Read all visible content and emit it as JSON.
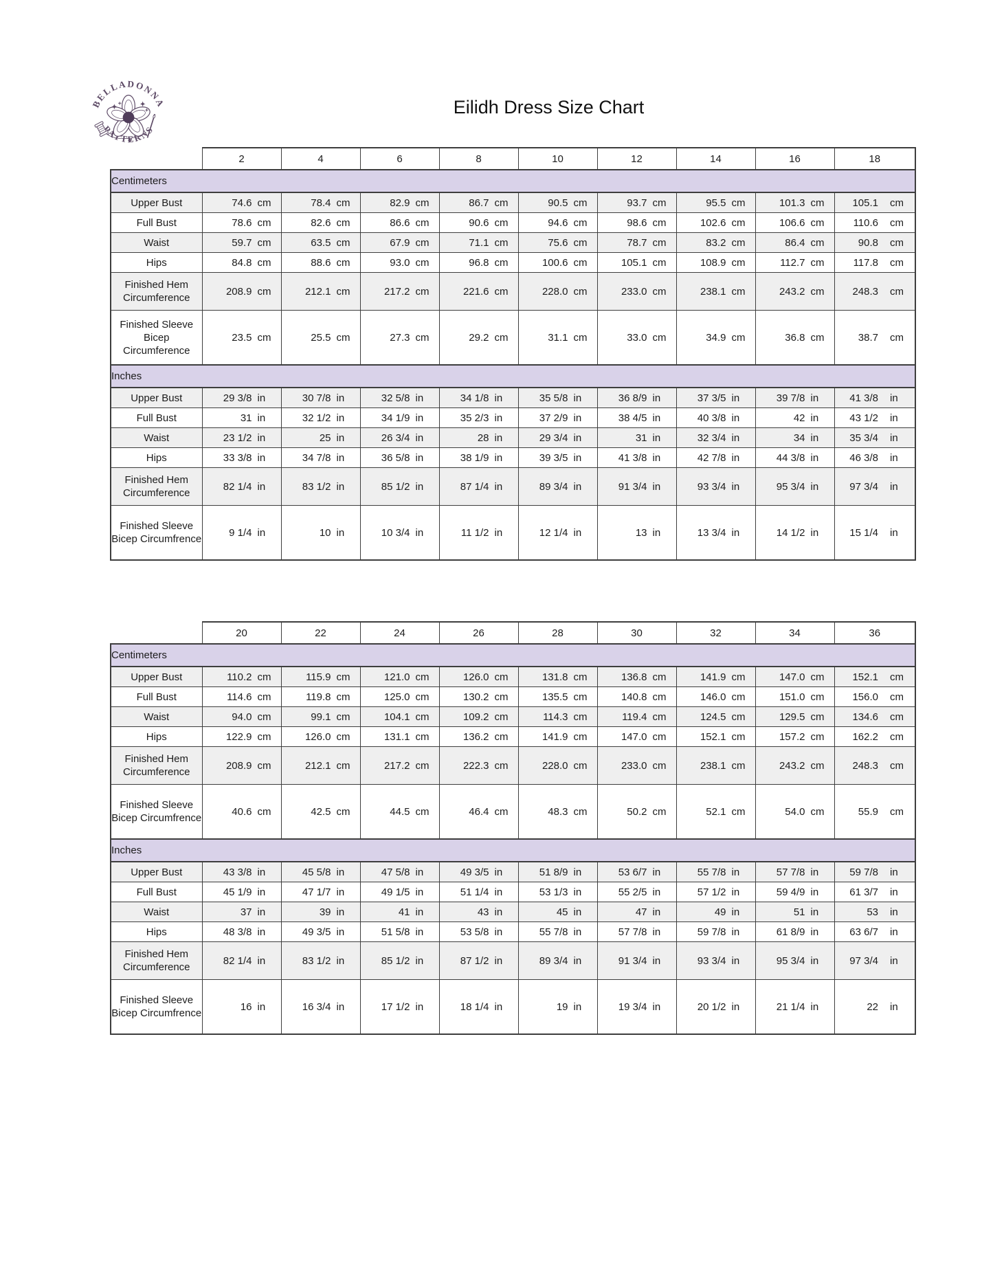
{
  "logo": {
    "arc_top": "BELLADONNA",
    "arc_bottom": "PATTERNS"
  },
  "title": "Eilidh Dress Size Chart",
  "colors": {
    "section_band": "#d9d2e9",
    "shaded_row": "#efefef",
    "border": "#3d3d3d",
    "logo_purple": "#5d4a66"
  },
  "tables": [
    {
      "name": "sizes-2-18",
      "sizes": [
        "2",
        "4",
        "6",
        "8",
        "10",
        "12",
        "14",
        "16",
        "18"
      ],
      "sections": [
        {
          "label": "Centimeters",
          "unit": "cm",
          "rows": [
            {
              "label": "Upper Bust",
              "values": [
                "74.6",
                "78.4",
                "82.9",
                "86.7",
                "90.5",
                "93.7",
                "95.5",
                "101.3",
                "105.1"
              ]
            },
            {
              "label": "Full Bust",
              "values": [
                "78.6",
                "82.6",
                "86.6",
                "90.6",
                "94.6",
                "98.6",
                "102.6",
                "106.6",
                "110.6"
              ]
            },
            {
              "label": "Waist",
              "values": [
                "59.7",
                "63.5",
                "67.9",
                "71.1",
                "75.6",
                "78.7",
                "83.2",
                "86.4",
                "90.8"
              ]
            },
            {
              "label": "Hips",
              "values": [
                "84.8",
                "88.6",
                "93.0",
                "96.8",
                "100.6",
                "105.1",
                "108.9",
                "112.7",
                "117.8"
              ]
            },
            {
              "label": "Finished Hem Circumference",
              "values": [
                "208.9",
                "212.1",
                "217.2",
                "221.6",
                "228.0",
                "233.0",
                "238.1",
                "243.2",
                "248.3"
              ]
            },
            {
              "label": "Finished Sleeve Bicep Circumference",
              "values": [
                "23.5",
                "25.5",
                "27.3",
                "29.2",
                "31.1",
                "33.0",
                "34.9",
                "36.8",
                "38.7"
              ]
            }
          ]
        },
        {
          "label": "Inches",
          "unit": "in",
          "rows": [
            {
              "label": "Upper Bust",
              "values": [
                "29 3/8",
                "30 7/8",
                "32 5/8",
                "34 1/8",
                "35 5/8",
                "36 8/9",
                "37 3/5",
                "39 7/8",
                "41 3/8"
              ]
            },
            {
              "label": "Full Bust",
              "values": [
                "31",
                "32 1/2",
                "34 1/9",
                "35 2/3",
                "37 2/9",
                "38 4/5",
                "40 3/8",
                "42",
                "43 1/2"
              ]
            },
            {
              "label": "Waist",
              "values": [
                "23 1/2",
                "25",
                "26 3/4",
                "28",
                "29 3/4",
                "31",
                "32 3/4",
                "34",
                "35 3/4"
              ]
            },
            {
              "label": "Hips",
              "values": [
                "33 3/8",
                "34 7/8",
                "36 5/8",
                "38 1/9",
                "39 3/5",
                "41 3/8",
                "42 7/8",
                "44 3/8",
                "46 3/8"
              ]
            },
            {
              "label": "Finished Hem Circumference",
              "values": [
                "82 1/4",
                "83 1/2",
                "85 1/2",
                "87 1/4",
                "89 3/4",
                "91 3/4",
                "93 3/4",
                "95 3/4",
                "97 3/4"
              ]
            },
            {
              "label": "Finished Sleeve Bicep Circumfrence",
              "values": [
                "9 1/4",
                "10",
                "10 3/4",
                "11 1/2",
                "12 1/4",
                "13",
                "13 3/4",
                "14 1/2",
                "15 1/4"
              ]
            }
          ]
        }
      ]
    },
    {
      "name": "sizes-20-36",
      "sizes": [
        "20",
        "22",
        "24",
        "26",
        "28",
        "30",
        "32",
        "34",
        "36"
      ],
      "sections": [
        {
          "label": "Centimeters",
          "unit": "cm",
          "rows": [
            {
              "label": "Upper Bust",
              "values": [
                "110.2",
                "115.9",
                "121.0",
                "126.0",
                "131.8",
                "136.8",
                "141.9",
                "147.0",
                "152.1"
              ]
            },
            {
              "label": "Full Bust",
              "values": [
                "114.6",
                "119.8",
                "125.0",
                "130.2",
                "135.5",
                "140.8",
                "146.0",
                "151.0",
                "156.0"
              ]
            },
            {
              "label": "Waist",
              "values": [
                "94.0",
                "99.1",
                "104.1",
                "109.2",
                "114.3",
                "119.4",
                "124.5",
                "129.5",
                "134.6"
              ]
            },
            {
              "label": "Hips",
              "values": [
                "122.9",
                "126.0",
                "131.1",
                "136.2",
                "141.9",
                "147.0",
                "152.1",
                "157.2",
                "162.2"
              ]
            },
            {
              "label": "Finished Hem Circumference",
              "values": [
                "208.9",
                "212.1",
                "217.2",
                "222.3",
                "228.0",
                "233.0",
                "238.1",
                "243.2",
                "248.3"
              ]
            },
            {
              "label": "Finished Sleeve Bicep Circumfrence",
              "values": [
                "40.6",
                "42.5",
                "44.5",
                "46.4",
                "48.3",
                "50.2",
                "52.1",
                "54.0",
                "55.9"
              ]
            }
          ]
        },
        {
          "label": "Inches",
          "unit": "in",
          "rows": [
            {
              "label": "Upper Bust",
              "values": [
                "43 3/8",
                "45 5/8",
                "47 5/8",
                "49 3/5",
                "51 8/9",
                "53 6/7",
                "55 7/8",
                "57 7/8",
                "59 7/8"
              ]
            },
            {
              "label": "Full Bust",
              "values": [
                "45 1/9",
                "47 1/7",
                "49 1/5",
                "51 1/4",
                "53 1/3",
                "55 2/5",
                "57 1/2",
                "59 4/9",
                "61 3/7"
              ]
            },
            {
              "label": "Waist",
              "values": [
                "37",
                "39",
                "41",
                "43",
                "45",
                "47",
                "49",
                "51",
                "53"
              ]
            },
            {
              "label": "Hips",
              "values": [
                "48 3/8",
                "49 3/5",
                "51 5/8",
                "53 5/8",
                "55 7/8",
                "57 7/8",
                "59 7/8",
                "61 8/9",
                "63 6/7"
              ]
            },
            {
              "label": "Finished Hem Circumference",
              "values": [
                "82 1/4",
                "83 1/2",
                "85 1/2",
                "87 1/2",
                "89 3/4",
                "91 3/4",
                "93 3/4",
                "95 3/4",
                "97 3/4"
              ]
            },
            {
              "label": "Finished Sleeve Bicep Circumfrence",
              "values": [
                "16",
                "16 3/4",
                "17 1/2",
                "18 1/4",
                "19",
                "19 3/4",
                "20 1/2",
                "21 1/4",
                "22"
              ]
            }
          ]
        }
      ]
    }
  ]
}
